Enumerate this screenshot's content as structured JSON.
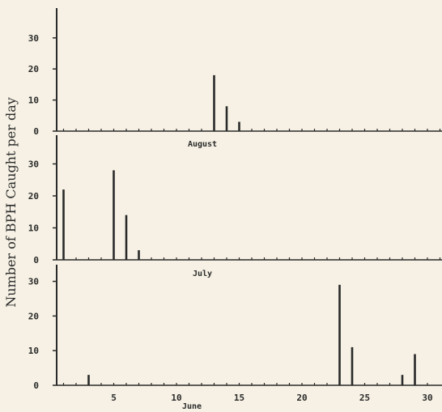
{
  "colors": {
    "background": "#f6f1e4",
    "ink": "#2a2a2a"
  },
  "chart_data": {
    "type": "bar",
    "ylabel": "Number of BPH Caught per day",
    "x_ticks": [
      5,
      10,
      15,
      20,
      25,
      30
    ],
    "xlim": [
      0,
      31
    ],
    "panels": [
      {
        "label": "August",
        "ylim": [
          0,
          38
        ],
        "y_ticks": [
          0,
          10,
          20,
          30
        ],
        "x": [
          1,
          2,
          3,
          4,
          5,
          6,
          7,
          8,
          9,
          10,
          11,
          12,
          13,
          14,
          15,
          16,
          17,
          18,
          19,
          20,
          21,
          22,
          23,
          24,
          25,
          26,
          27,
          28,
          29,
          30,
          31
        ],
        "values": [
          0,
          0,
          0,
          0,
          0,
          0,
          0,
          0,
          0,
          0,
          0,
          0,
          18,
          8,
          3,
          0,
          0,
          0,
          0,
          0,
          0,
          0,
          0,
          0,
          0,
          0,
          0,
          0,
          0,
          0,
          0
        ]
      },
      {
        "label": "July",
        "ylim": [
          0,
          33
        ],
        "y_ticks": [
          0,
          10,
          20,
          30
        ],
        "x": [
          1,
          2,
          3,
          4,
          5,
          6,
          7,
          8,
          9,
          10,
          11,
          12,
          13,
          14,
          15,
          16,
          17,
          18,
          19,
          20,
          21,
          22,
          23,
          24,
          25,
          26,
          27,
          28,
          29,
          30,
          31
        ],
        "values": [
          22,
          0,
          0,
          0,
          28,
          14,
          3,
          0,
          0,
          0,
          0,
          0,
          0,
          0,
          0,
          0,
          0,
          0,
          0,
          0,
          0,
          0,
          0,
          0,
          0,
          0,
          0,
          0,
          0,
          0,
          0
        ]
      },
      {
        "label": "June",
        "ylim": [
          0,
          36
        ],
        "y_ticks": [
          0,
          10,
          20,
          30
        ],
        "x": [
          1,
          2,
          3,
          4,
          5,
          6,
          7,
          8,
          9,
          10,
          11,
          12,
          13,
          14,
          15,
          16,
          17,
          18,
          19,
          20,
          21,
          22,
          23,
          24,
          25,
          26,
          27,
          28,
          29,
          30
        ],
        "values": [
          0,
          0,
          3,
          0,
          0,
          0,
          0,
          0,
          0,
          0,
          0,
          0,
          0,
          0,
          0,
          0,
          0,
          0,
          0,
          0,
          0,
          0,
          29,
          11,
          0,
          0,
          0,
          3,
          9,
          0
        ]
      }
    ]
  }
}
